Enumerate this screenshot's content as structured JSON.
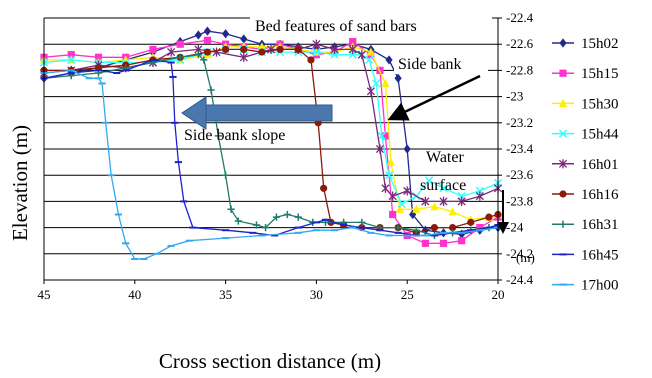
{
  "chart_data": {
    "type": "line",
    "title": "",
    "xlabel": "Cross section distance (m)",
    "ylabel": "Elevation (m)",
    "x_unit_label": "(m)",
    "xlim": [
      45,
      20
    ],
    "ylim": [
      -24.4,
      -22.4
    ],
    "x_ticks": [
      "45",
      "40",
      "35",
      "30",
      "25",
      "20"
    ],
    "y_ticks": [
      "-22.4",
      "-22.6",
      "-22.8",
      "-23",
      "-23.2",
      "-23.4",
      "-23.6",
      "-23.8",
      "-24",
      "-24.2",
      "-24.4"
    ],
    "grid": "horizontal",
    "y_axis_side": "right",
    "legend_position": "right",
    "annotations": [
      {
        "text": "Bed features of sand bars"
      },
      {
        "text": "Side bank"
      },
      {
        "text": "Side bank slope"
      },
      {
        "text": "Water"
      },
      {
        "text": "surface"
      }
    ],
    "series": [
      {
        "name": "15h02",
        "color": "#1f2a8c",
        "marker": "diamond",
        "points": [
          [
            45,
            -22.86
          ],
          [
            43.5,
            -22.82
          ],
          [
            42,
            -22.78
          ],
          [
            40.5,
            -22.72
          ],
          [
            39,
            -22.66
          ],
          [
            37.5,
            -22.58
          ],
          [
            36.5,
            -22.53
          ],
          [
            36,
            -22.5
          ],
          [
            35,
            -22.52
          ],
          [
            34,
            -22.56
          ],
          [
            33,
            -22.6
          ],
          [
            32,
            -22.6
          ],
          [
            31,
            -22.62
          ],
          [
            30,
            -22.64
          ],
          [
            29,
            -22.62
          ],
          [
            28,
            -22.6
          ],
          [
            27,
            -22.64
          ],
          [
            26,
            -22.72
          ],
          [
            25.5,
            -22.86
          ],
          [
            25,
            -23.4
          ],
          [
            24.7,
            -23.9
          ],
          [
            24,
            -24.02
          ],
          [
            23,
            -24.04
          ],
          [
            22,
            -24.05
          ],
          [
            21,
            -24.02
          ],
          [
            20,
            -24.0
          ]
        ]
      },
      {
        "name": "15h15",
        "color": "#ff33cc",
        "marker": "square",
        "points": [
          [
            45,
            -22.7
          ],
          [
            43.5,
            -22.68
          ],
          [
            42,
            -22.7
          ],
          [
            40.5,
            -22.7
          ],
          [
            39,
            -22.64
          ],
          [
            37.5,
            -22.6
          ],
          [
            36,
            -22.57
          ],
          [
            35,
            -22.6
          ],
          [
            34,
            -22.62
          ],
          [
            33,
            -22.64
          ],
          [
            32,
            -22.6
          ],
          [
            31,
            -22.64
          ],
          [
            30,
            -22.68
          ],
          [
            29,
            -22.66
          ],
          [
            28,
            -22.58
          ],
          [
            27,
            -22.68
          ],
          [
            26.5,
            -22.8
          ],
          [
            26.2,
            -23.3
          ],
          [
            25.8,
            -23.9
          ],
          [
            25,
            -24.06
          ],
          [
            24,
            -24.12
          ],
          [
            23,
            -24.12
          ],
          [
            22,
            -24.1
          ],
          [
            21,
            -24.0
          ],
          [
            20,
            -23.92
          ]
        ]
      },
      {
        "name": "15h30",
        "color": "#ffee00",
        "marker": "triangle",
        "points": [
          [
            45,
            -22.72
          ],
          [
            43.5,
            -22.72
          ],
          [
            42,
            -22.74
          ],
          [
            40.5,
            -22.72
          ],
          [
            39,
            -22.7
          ],
          [
            37.5,
            -22.72
          ],
          [
            36,
            -22.68
          ],
          [
            35,
            -22.62
          ],
          [
            34,
            -22.62
          ],
          [
            33,
            -22.62
          ],
          [
            32,
            -22.62
          ],
          [
            31,
            -22.64
          ],
          [
            30,
            -22.66
          ],
          [
            29,
            -22.66
          ],
          [
            28,
            -22.62
          ],
          [
            27,
            -22.66
          ],
          [
            26.2,
            -22.9
          ],
          [
            25.9,
            -23.5
          ],
          [
            25.4,
            -23.86
          ],
          [
            24.5,
            -23.86
          ],
          [
            23.5,
            -23.84
          ],
          [
            22.5,
            -23.88
          ],
          [
            21.5,
            -23.94
          ],
          [
            20.5,
            -23.92
          ],
          [
            20,
            -23.9
          ]
        ]
      },
      {
        "name": "15h44",
        "color": "#33ffff",
        "marker": "x",
        "points": [
          [
            45,
            -22.74
          ],
          [
            43.5,
            -22.72
          ],
          [
            42,
            -22.74
          ],
          [
            40.5,
            -22.74
          ],
          [
            39,
            -22.74
          ],
          [
            37.5,
            -22.72
          ],
          [
            36,
            -22.66
          ],
          [
            35,
            -22.64
          ],
          [
            34,
            -22.64
          ],
          [
            33,
            -22.66
          ],
          [
            32,
            -22.66
          ],
          [
            31,
            -22.66
          ],
          [
            30,
            -22.66
          ],
          [
            29,
            -22.68
          ],
          [
            28,
            -22.68
          ],
          [
            27.5,
            -22.68
          ],
          [
            27.1,
            -22.72
          ],
          [
            26.7,
            -22.9
          ],
          [
            26.4,
            -23.3
          ],
          [
            26,
            -23.6
          ],
          [
            25.3,
            -23.82
          ],
          [
            24.5,
            -23.76
          ],
          [
            23.8,
            -23.64
          ],
          [
            23,
            -23.7
          ],
          [
            22,
            -23.76
          ],
          [
            21,
            -23.72
          ],
          [
            20,
            -23.66
          ]
        ]
      },
      {
        "name": "16h01",
        "color": "#7a2a7a",
        "marker": "star",
        "points": [
          [
            45,
            -22.82
          ],
          [
            43.5,
            -22.8
          ],
          [
            42,
            -22.76
          ],
          [
            40.5,
            -22.78
          ],
          [
            39,
            -22.74
          ],
          [
            38,
            -22.66
          ],
          [
            36.5,
            -22.64
          ],
          [
            35.5,
            -22.66
          ],
          [
            34,
            -22.7
          ],
          [
            32.5,
            -22.64
          ],
          [
            31,
            -22.64
          ],
          [
            30,
            -22.6
          ],
          [
            29,
            -22.64
          ],
          [
            28,
            -22.64
          ],
          [
            27.5,
            -22.68
          ],
          [
            27,
            -22.96
          ],
          [
            26.5,
            -23.4
          ],
          [
            26.2,
            -23.7
          ],
          [
            25.8,
            -23.76
          ],
          [
            25,
            -23.72
          ],
          [
            24,
            -23.8
          ],
          [
            23,
            -23.8
          ],
          [
            22,
            -23.8
          ],
          [
            21,
            -23.76
          ],
          [
            20,
            -23.7
          ]
        ]
      },
      {
        "name": "16h16",
        "color": "#8b1a0a",
        "marker": "circle",
        "points": [
          [
            45,
            -22.8
          ],
          [
            43.5,
            -22.8
          ],
          [
            42,
            -22.78
          ],
          [
            40.5,
            -22.76
          ],
          [
            39,
            -22.72
          ],
          [
            37.5,
            -22.7
          ],
          [
            36,
            -22.66
          ],
          [
            35,
            -22.64
          ],
          [
            34,
            -22.64
          ],
          [
            33,
            -22.66
          ],
          [
            32,
            -22.64
          ],
          [
            31,
            -22.64
          ],
          [
            30.3,
            -22.72
          ],
          [
            29.9,
            -23.2
          ],
          [
            29.6,
            -23.7
          ],
          [
            29.2,
            -23.96
          ],
          [
            28.5,
            -23.98
          ],
          [
            27.5,
            -24.0
          ],
          [
            26.5,
            -24.0
          ],
          [
            25.5,
            -24.0
          ],
          [
            24.5,
            -24.04
          ],
          [
            23.5,
            -24.0
          ],
          [
            22.5,
            -24.0
          ],
          [
            21.5,
            -23.96
          ],
          [
            20.5,
            -23.92
          ],
          [
            20,
            -23.9
          ]
        ]
      },
      {
        "name": "16h31",
        "color": "#1f7a6a",
        "marker": "plus",
        "points": [
          [
            45,
            -22.86
          ],
          [
            43.5,
            -22.84
          ],
          [
            42,
            -22.82
          ],
          [
            40.5,
            -22.78
          ],
          [
            39,
            -22.74
          ],
          [
            37.5,
            -22.7
          ],
          [
            36.5,
            -22.68
          ],
          [
            36.2,
            -22.72
          ],
          [
            35.8,
            -22.95
          ],
          [
            35.4,
            -23.3
          ],
          [
            35,
            -23.6
          ],
          [
            34.7,
            -23.86
          ],
          [
            34.3,
            -23.95
          ],
          [
            33.3,
            -23.98
          ],
          [
            32.8,
            -24.0
          ],
          [
            32.2,
            -23.92
          ],
          [
            31.6,
            -23.9
          ],
          [
            31,
            -23.92
          ],
          [
            30.2,
            -23.96
          ],
          [
            29.5,
            -23.96
          ],
          [
            28.5,
            -23.96
          ],
          [
            27.5,
            -23.96
          ],
          [
            26.5,
            -24.0
          ],
          [
            25.5,
            -24.0
          ],
          [
            24.5,
            -24.02
          ],
          [
            23.5,
            -24.06
          ],
          [
            22.5,
            -24.04
          ],
          [
            21.5,
            -24.02
          ],
          [
            20.5,
            -24.0
          ],
          [
            20,
            -23.98
          ]
        ]
      },
      {
        "name": "16h45",
        "color": "#1f22cc",
        "marker": "dash",
        "points": [
          [
            45,
            -22.86
          ],
          [
            43.5,
            -22.82
          ],
          [
            42,
            -22.8
          ],
          [
            41,
            -22.82
          ],
          [
            40.5,
            -22.8
          ],
          [
            39,
            -22.72
          ],
          [
            38,
            -22.74
          ],
          [
            37.9,
            -22.85
          ],
          [
            37.8,
            -23.2
          ],
          [
            37.6,
            -23.5
          ],
          [
            37.3,
            -23.8
          ],
          [
            36.8,
            -24.0
          ],
          [
            35,
            -24.02
          ],
          [
            33.5,
            -24.04
          ],
          [
            32.3,
            -24.06
          ],
          [
            31,
            -24.0
          ],
          [
            30,
            -23.96
          ],
          [
            29.5,
            -23.94
          ],
          [
            28.5,
            -23.98
          ],
          [
            27.5,
            -24.0
          ],
          [
            26.5,
            -24.02
          ],
          [
            25.5,
            -24.04
          ],
          [
            24.5,
            -24.06
          ],
          [
            23.5,
            -24.06
          ],
          [
            22.5,
            -24.04
          ],
          [
            21.5,
            -24.02
          ],
          [
            20.5,
            -24.0
          ],
          [
            20,
            -23.98
          ]
        ]
      },
      {
        "name": "17h00",
        "color": "#33aaee",
        "marker": "dash",
        "points": [
          [
            45,
            -22.82
          ],
          [
            43.5,
            -22.8
          ],
          [
            42.5,
            -22.86
          ],
          [
            42,
            -22.86
          ],
          [
            41.8,
            -22.9
          ],
          [
            41.6,
            -23.2
          ],
          [
            41.3,
            -23.6
          ],
          [
            40.9,
            -23.9
          ],
          [
            40.5,
            -24.12
          ],
          [
            40,
            -24.24
          ],
          [
            39.5,
            -24.24
          ],
          [
            38.8,
            -24.2
          ],
          [
            38,
            -24.14
          ],
          [
            37,
            -24.1
          ],
          [
            35,
            -24.08
          ],
          [
            33,
            -24.06
          ],
          [
            31,
            -24.04
          ],
          [
            30,
            -24.02
          ],
          [
            29,
            -24.02
          ],
          [
            28,
            -24.0
          ],
          [
            27,
            -24.04
          ],
          [
            26,
            -24.06
          ],
          [
            25,
            -24.06
          ],
          [
            24,
            -24.06
          ],
          [
            23,
            -24.04
          ],
          [
            22,
            -24.04
          ],
          [
            21,
            -24.02
          ],
          [
            20,
            -24.0
          ]
        ]
      }
    ]
  }
}
